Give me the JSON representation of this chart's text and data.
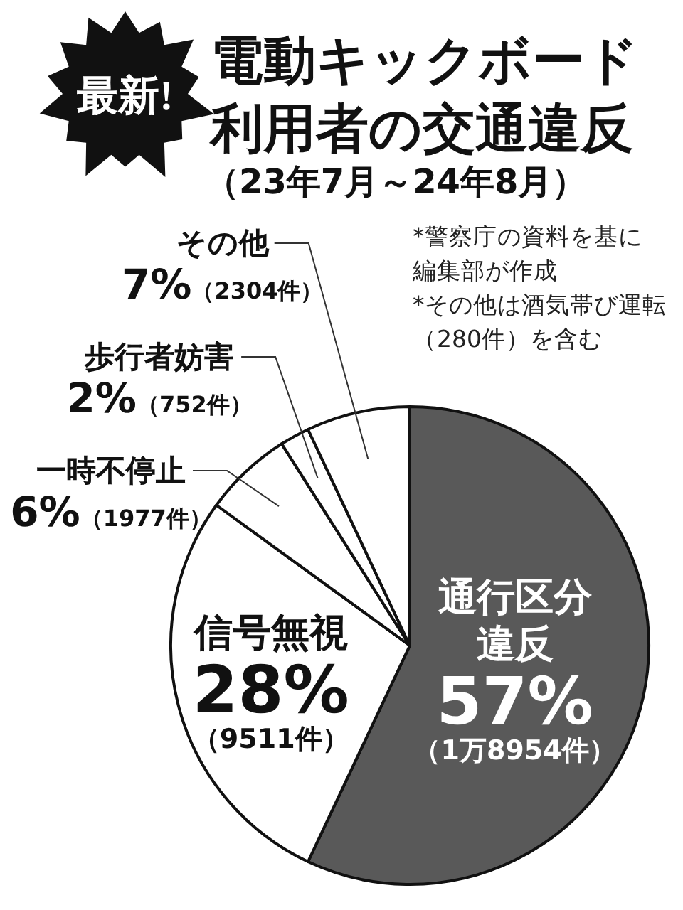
{
  "chart_data": {
    "type": "pie",
    "title": "電動キックボード利用者の交通違反",
    "subtitle": "（23年7月～24年8月）",
    "categories": [
      "通行区分違反",
      "信号無視",
      "一時不停止",
      "歩行者妨害",
      "その他"
    ],
    "values": [
      57,
      28,
      6,
      2,
      7
    ],
    "colors": [
      "#595959",
      "#ffffff",
      "#ffffff",
      "#ffffff",
      "#ffffff"
    ],
    "value_labels": [
      "57%（1万8954件）",
      "28%（9511件）",
      "6%（1977件）",
      "2%（752件）",
      "7%（2304件）"
    ],
    "annotations": [
      "最新!",
      "*警察庁の資料を基に",
      "編集部が作成",
      "*その他は酒気帯び運転",
      "（280件）を含む"
    ]
  }
}
